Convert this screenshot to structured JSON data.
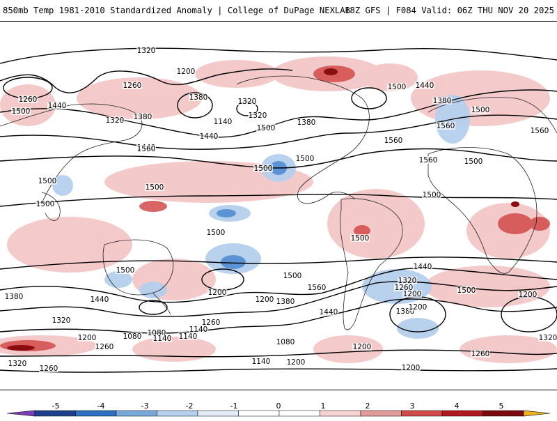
{
  "header": {
    "title_left": "850mb Temp 1981-2010 Standardized Anomaly | College of DuPage NEXLAB",
    "title_right": "18Z GFS | F084 Valid: 06Z THU NOV 20 2025"
  },
  "map": {
    "contour_labels": [
      "1320",
      "1260",
      "1200",
      "1260",
      "1380",
      "1320",
      "1440",
      "1500",
      "1380",
      "1320",
      "1140",
      "1440",
      "1380",
      "1320",
      "1440",
      "1500",
      "1380",
      "1560",
      "1560",
      "1500",
      "1500",
      "1560",
      "1500",
      "1440",
      "1560",
      "1500",
      "1500",
      "1560",
      "1500",
      "1500",
      "1500",
      "1500",
      "1500",
      "1500",
      "1500",
      "1440",
      "1320",
      "1260",
      "1200",
      "1380",
      "1440",
      "1380",
      "1260",
      "1500",
      "1440",
      "1560",
      "1500",
      "1380",
      "1200",
      "1140",
      "1080",
      "1200",
      "1080",
      "1140",
      "1320",
      "1320",
      "1200",
      "1260",
      "1260",
      "1080",
      "1140",
      "1200",
      "1200",
      "1200",
      "1320",
      "1260",
      "1140",
      "1200",
      "1200"
    ]
  },
  "colorbar": {
    "ticks": [
      "-5",
      "-4",
      "-3",
      "-2",
      "-1",
      "0",
      "1",
      "2",
      "3",
      "4",
      "5"
    ],
    "colors": [
      "#7b3fb8",
      "#1e3f8c",
      "#2d6fc0",
      "#79a8dc",
      "#b5d0ee",
      "#e2ecf8",
      "#ffffff",
      "#ffffff",
      "#f6d3d3",
      "#e39a9a",
      "#d24b4b",
      "#b0191f",
      "#7a0b0f",
      "#f0b020"
    ]
  }
}
